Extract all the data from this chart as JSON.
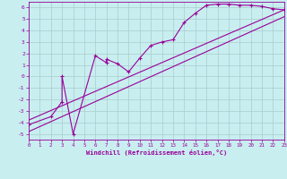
{
  "xlabel": "Windchill (Refroidissement éolien,°C)",
  "bg_color": "#c8eef0",
  "line_color": "#990099",
  "grid_color": "#aacccc",
  "xlim": [
    0,
    23
  ],
  "ylim": [
    -5.5,
    6.5
  ],
  "xticks": [
    0,
    1,
    2,
    3,
    4,
    5,
    6,
    7,
    8,
    9,
    10,
    11,
    12,
    13,
    14,
    15,
    16,
    17,
    18,
    19,
    20,
    21,
    22,
    23
  ],
  "yticks": [
    -5,
    -4,
    -3,
    -2,
    -1,
    0,
    1,
    2,
    3,
    4,
    5,
    6
  ],
  "line1_x": [
    0,
    23
  ],
  "line1_y": [
    -3.8,
    5.8
  ],
  "line2_x": [
    0,
    23
  ],
  "line2_y": [
    -4.8,
    5.2
  ],
  "data_x": [
    0,
    2,
    3,
    3,
    4,
    6,
    7,
    7,
    8,
    9,
    10,
    11,
    12,
    13,
    14,
    15,
    16,
    17,
    18,
    19,
    20,
    21,
    22,
    23
  ],
  "data_y": [
    -4.2,
    -3.5,
    -2.2,
    0.0,
    -5.0,
    1.8,
    1.2,
    1.5,
    1.1,
    0.4,
    1.6,
    2.7,
    3.0,
    3.2,
    4.7,
    5.5,
    6.2,
    6.3,
    6.3,
    6.2,
    6.2,
    6.1,
    5.9,
    5.8
  ]
}
